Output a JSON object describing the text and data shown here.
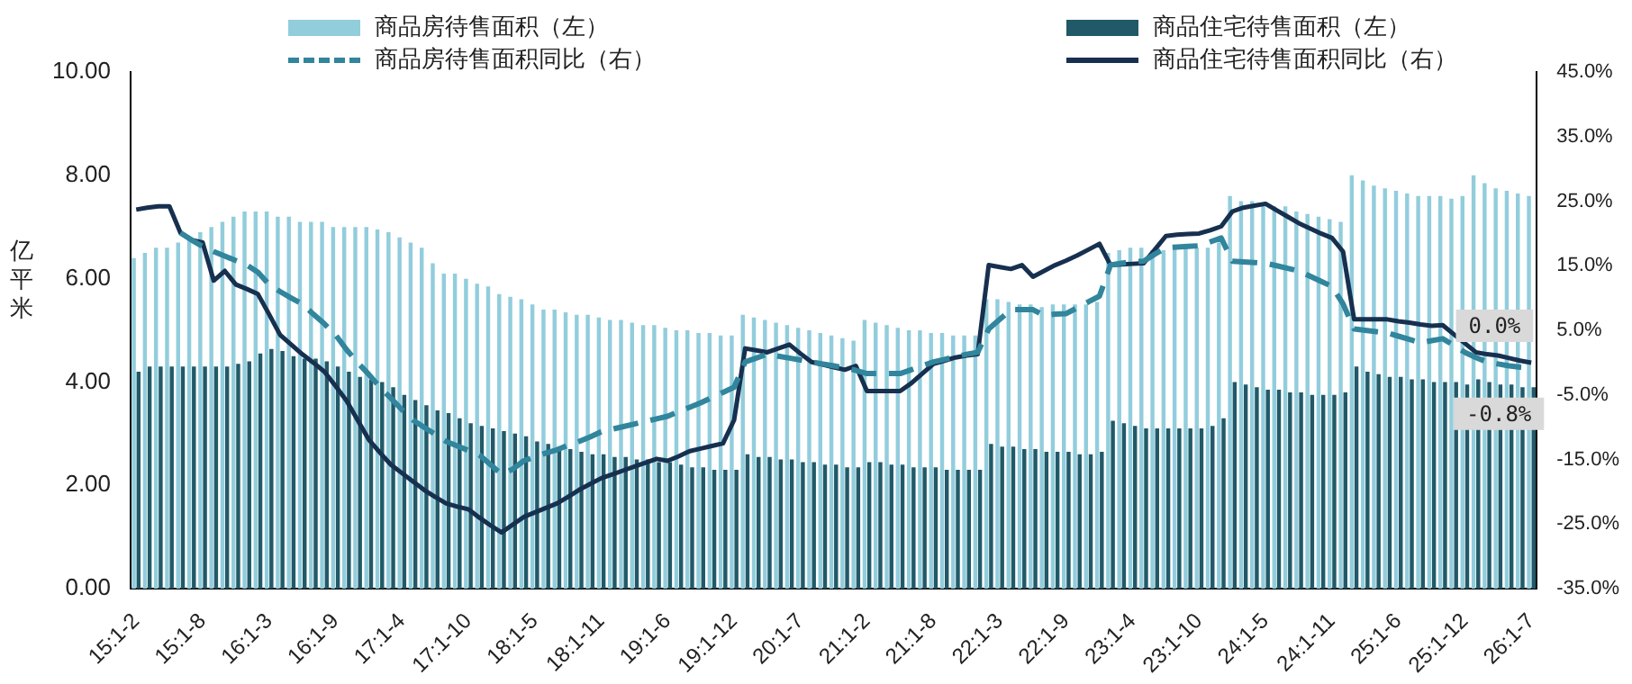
{
  "chart_data": {
    "type": "bar",
    "ylabel": "亿平米",
    "categories": [
      "15:1-2",
      null,
      null,
      null,
      null,
      null,
      "15:1-8",
      null,
      null,
      null,
      null,
      null,
      "16:1-3",
      null,
      null,
      null,
      null,
      null,
      "16:1-9",
      null,
      null,
      null,
      null,
      null,
      "17:1-4",
      null,
      null,
      null,
      null,
      null,
      "17:1-10",
      null,
      null,
      null,
      null,
      null,
      "18:1-5",
      null,
      null,
      null,
      null,
      null,
      "18:1-11",
      null,
      null,
      null,
      null,
      null,
      "19:1-6",
      null,
      null,
      null,
      null,
      null,
      "19:1-12",
      null,
      null,
      null,
      null,
      null,
      "20:1-7",
      null,
      null,
      null,
      null,
      null,
      "21:1-2",
      null,
      null,
      null,
      null,
      null,
      "21:1-8",
      null,
      null,
      null,
      null,
      null,
      "22:1-3",
      null,
      null,
      null,
      null,
      null,
      "22:1-9",
      null,
      null,
      null,
      null,
      null,
      "23:1-4",
      null,
      null,
      null,
      null,
      null,
      "23:1-10",
      null,
      null,
      null,
      null,
      null,
      "24:1-5",
      null,
      null,
      null,
      null,
      null,
      "24:1-11",
      null,
      null,
      null,
      null,
      null,
      "25:1-6",
      null,
      null,
      null,
      null,
      null,
      "25:1-12",
      null,
      null,
      null,
      null,
      null,
      "26:1-7"
    ],
    "series": [
      {
        "name": "商品房待售面积（左）",
        "color": "#92cddc",
        "values": [
          6.4,
          6.5,
          6.6,
          6.6,
          6.7,
          6.8,
          6.9,
          7.0,
          7.1,
          7.2,
          7.3,
          7.3,
          7.3,
          7.2,
          7.2,
          7.1,
          7.1,
          7.1,
          7.0,
          7.0,
          7.0,
          7.0,
          6.95,
          6.9,
          6.8,
          6.7,
          6.6,
          6.3,
          6.1,
          6.1,
          6.0,
          5.9,
          5.85,
          5.7,
          5.65,
          5.6,
          5.5,
          5.4,
          5.4,
          5.35,
          5.3,
          5.3,
          5.25,
          5.2,
          5.2,
          5.15,
          5.1,
          5.1,
          5.05,
          5.0,
          5.0,
          4.95,
          4.95,
          4.9,
          4.9,
          5.3,
          5.25,
          5.2,
          5.15,
          5.1,
          5.05,
          5.0,
          4.95,
          4.9,
          4.85,
          4.8,
          5.2,
          5.15,
          5.1,
          5.05,
          5.0,
          5.0,
          4.95,
          4.95,
          4.9,
          4.9,
          4.9,
          5.6,
          5.6,
          5.55,
          5.5,
          5.5,
          5.45,
          5.5,
          5.5,
          5.5,
          5.5,
          5.55,
          6.5,
          6.55,
          6.6,
          6.6,
          6.55,
          6.55,
          6.6,
          6.6,
          6.6,
          6.6,
          6.7,
          7.6,
          7.5,
          7.5,
          7.45,
          7.4,
          7.4,
          7.3,
          7.25,
          7.2,
          7.15,
          7.1,
          8.0,
          7.9,
          7.8,
          7.75,
          7.7,
          7.65,
          7.6,
          7.6,
          7.6,
          7.55,
          7.6,
          8.0,
          7.85,
          7.75,
          7.7,
          7.65,
          7.6
        ]
      },
      {
        "name": "商品住宅待售面积（左）",
        "color": "#215968",
        "values": [
          4.2,
          4.3,
          4.3,
          4.3,
          4.3,
          4.3,
          4.3,
          4.3,
          4.3,
          4.35,
          4.4,
          4.55,
          4.64,
          4.6,
          4.5,
          4.45,
          4.45,
          4.4,
          4.3,
          4.2,
          4.1,
          4.05,
          4.0,
          3.9,
          3.75,
          3.65,
          3.55,
          3.45,
          3.4,
          3.3,
          3.2,
          3.15,
          3.1,
          3.05,
          3.0,
          2.95,
          2.85,
          2.8,
          2.75,
          2.7,
          2.65,
          2.6,
          2.6,
          2.55,
          2.55,
          2.5,
          2.5,
          2.45,
          2.45,
          2.4,
          2.35,
          2.35,
          2.3,
          2.3,
          2.3,
          2.6,
          2.55,
          2.55,
          2.5,
          2.5,
          2.45,
          2.45,
          2.4,
          2.4,
          2.35,
          2.35,
          2.45,
          2.45,
          2.4,
          2.4,
          2.35,
          2.35,
          2.35,
          2.3,
          2.3,
          2.3,
          2.3,
          2.8,
          2.75,
          2.75,
          2.7,
          2.7,
          2.65,
          2.65,
          2.65,
          2.6,
          2.6,
          2.65,
          3.25,
          3.2,
          3.15,
          3.1,
          3.1,
          3.1,
          3.1,
          3.1,
          3.1,
          3.15,
          3.3,
          4.0,
          3.95,
          3.9,
          3.85,
          3.85,
          3.8,
          3.8,
          3.75,
          3.75,
          3.75,
          3.8,
          4.3,
          4.2,
          4.15,
          4.1,
          4.1,
          4.05,
          4.05,
          4.0,
          4.0,
          4.0,
          3.95,
          4.05,
          4.0,
          3.95,
          3.95,
          3.9,
          3.9
        ]
      },
      {
        "name": "商品房待售面积同比（右）",
        "type": "line",
        "axis": "y2",
        "line_style": "dashed",
        "color": "#31859c",
        "values": [
          null,
          null,
          null,
          null,
          20.1,
          19.0,
          18.0,
          17.2,
          16.5,
          15.8,
          15.1,
          14.0,
          12.1,
          11.0,
          10.0,
          9.1,
          7.5,
          6.0,
          4.3,
          2.0,
          0.0,
          -1.8,
          -3.8,
          -5.5,
          -7.3,
          -8.9,
          -10.0,
          -11.1,
          -12.2,
          -12.9,
          -13.6,
          -14.3,
          -15.8,
          -17.3,
          -16.5,
          -15.2,
          -14.6,
          -14.0,
          -13.5,
          -12.8,
          -12.2,
          -11.5,
          -10.7,
          -10.3,
          -9.9,
          -9.5,
          -9.1,
          -8.7,
          -8.3,
          -7.6,
          -6.9,
          -6.2,
          -5.4,
          -4.6,
          -3.8,
          0.1,
          0.7,
          1.3,
          1.0,
          0.7,
          0.4,
          0.1,
          -0.2,
          -0.5,
          -0.8,
          -1.2,
          -1.7,
          -1.7,
          -1.7,
          -1.7,
          -1.1,
          -0.5,
          0.1,
          0.5,
          0.9,
          1.3,
          1.6,
          5.2,
          6.7,
          8.2,
          8.2,
          8.2,
          7.3,
          7.5,
          7.6,
          8.5,
          9.4,
          10.3,
          15.1,
          15.4,
          15.6,
          15.7,
          16.8,
          17.8,
          17.9,
          18.0,
          18.1,
          18.7,
          19.3,
          15.7,
          15.6,
          15.5,
          15.4,
          15.0,
          14.6,
          14.2,
          13.4,
          12.6,
          11.8,
          9.1,
          5.2,
          5.0,
          4.8,
          4.6,
          4.1,
          3.6,
          3.1,
          3.4,
          3.7,
          2.7,
          1.6,
          0.8,
          0.1,
          -0.2,
          -0.5,
          -0.7,
          -0.8
        ]
      },
      {
        "name": "商品住宅待售面积同比（右）",
        "type": "line",
        "axis": "y2",
        "line_style": "solid",
        "color": "#17304f",
        "values": [
          23.7,
          24.0,
          24.2,
          24.2,
          20.1,
          19.0,
          18.6,
          12.7,
          14.2,
          12.1,
          11.4,
          10.6,
          7.5,
          4.3,
          2.8,
          1.3,
          0.0,
          -1.4,
          -3.6,
          -5.9,
          -8.9,
          -11.9,
          -13.9,
          -15.8,
          -17.1,
          -18.4,
          -19.7,
          -20.8,
          -21.8,
          -22.3,
          -22.7,
          -24.0,
          -25.2,
          -26.3,
          -25.1,
          -23.9,
          -23.2,
          -22.5,
          -21.8,
          -20.8,
          -19.7,
          -18.8,
          -17.9,
          -17.3,
          -16.7,
          -16.1,
          -15.5,
          -14.9,
          -15.2,
          -14.5,
          -13.7,
          -13.3,
          -12.9,
          -12.5,
          -8.9,
          2.2,
          1.9,
          1.6,
          2.2,
          2.8,
          1.4,
          0.1,
          -0.3,
          -0.7,
          -1.1,
          -0.5,
          -4.4,
          -4.4,
          -4.4,
          -4.4,
          -3.2,
          -1.7,
          -0.2,
          0.3,
          0.8,
          1.1,
          1.3,
          15.1,
          14.8,
          14.5,
          15.1,
          13.3,
          14.2,
          15.1,
          15.8,
          16.6,
          17.5,
          18.4,
          15.1,
          15.2,
          15.3,
          15.4,
          17.5,
          19.6,
          19.8,
          19.9,
          20.0,
          20.5,
          21.1,
          23.4,
          24.0,
          24.3,
          24.6,
          23.6,
          22.6,
          21.6,
          20.8,
          20.0,
          19.3,
          17.2,
          6.7,
          6.7,
          6.7,
          6.7,
          6.4,
          6.2,
          5.9,
          5.7,
          5.8,
          4.4,
          3.0,
          1.6,
          1.3,
          1.1,
          0.7,
          0.3,
          0.0
        ]
      }
    ],
    "ylim": [
      0,
      10
    ],
    "yticks": [
      {
        "value": 0,
        "label": "0.00"
      },
      {
        "value": 2,
        "label": "2.00"
      },
      {
        "value": 4,
        "label": "4.00"
      },
      {
        "value": 6,
        "label": "6.00"
      },
      {
        "value": 8,
        "label": "8.00"
      },
      {
        "value": 10,
        "label": "10.00"
      }
    ],
    "y2lim": [
      -35,
      45
    ],
    "y2ticks": [
      {
        "value": -35,
        "label": "-35.0%"
      },
      {
        "value": -25,
        "label": "-25.0%"
      },
      {
        "value": -15,
        "label": "-15.0%"
      },
      {
        "value": -5,
        "label": "-5.0%"
      },
      {
        "value": 5,
        "label": "5.0%"
      },
      {
        "value": 15,
        "label": "15.0%"
      },
      {
        "value": 25,
        "label": "25.0%"
      },
      {
        "value": 35,
        "label": "35.0%"
      },
      {
        "value": 45,
        "label": "45.0%"
      }
    ],
    "annotations": [
      "0.0%",
      "-0.8%"
    ],
    "legend": "top",
    "marker": "none"
  }
}
